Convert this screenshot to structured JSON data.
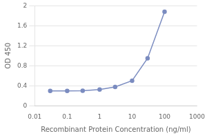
{
  "chart_data": {
    "type": "line",
    "x": [
      0.03,
      0.1,
      0.3,
      1,
      3,
      10,
      30,
      100
    ],
    "values": [
      0.295,
      0.295,
      0.3,
      0.325,
      0.375,
      0.5,
      0.95,
      1.88
    ],
    "xlabel": "Recombinant Protein Concentration (ng/ml)",
    "ylabel": "OD 450",
    "log": "x",
    "xlim": [
      0.01,
      1000
    ],
    "xticks": [
      0.01,
      0.1,
      1,
      10,
      100,
      1000
    ],
    "ylim": [
      0,
      2.0
    ],
    "yticks": [
      0,
      0.4,
      0.8,
      1.2,
      1.6,
      2
    ],
    "grid": "y",
    "color": "#7b8cc0",
    "marker": "circle"
  }
}
